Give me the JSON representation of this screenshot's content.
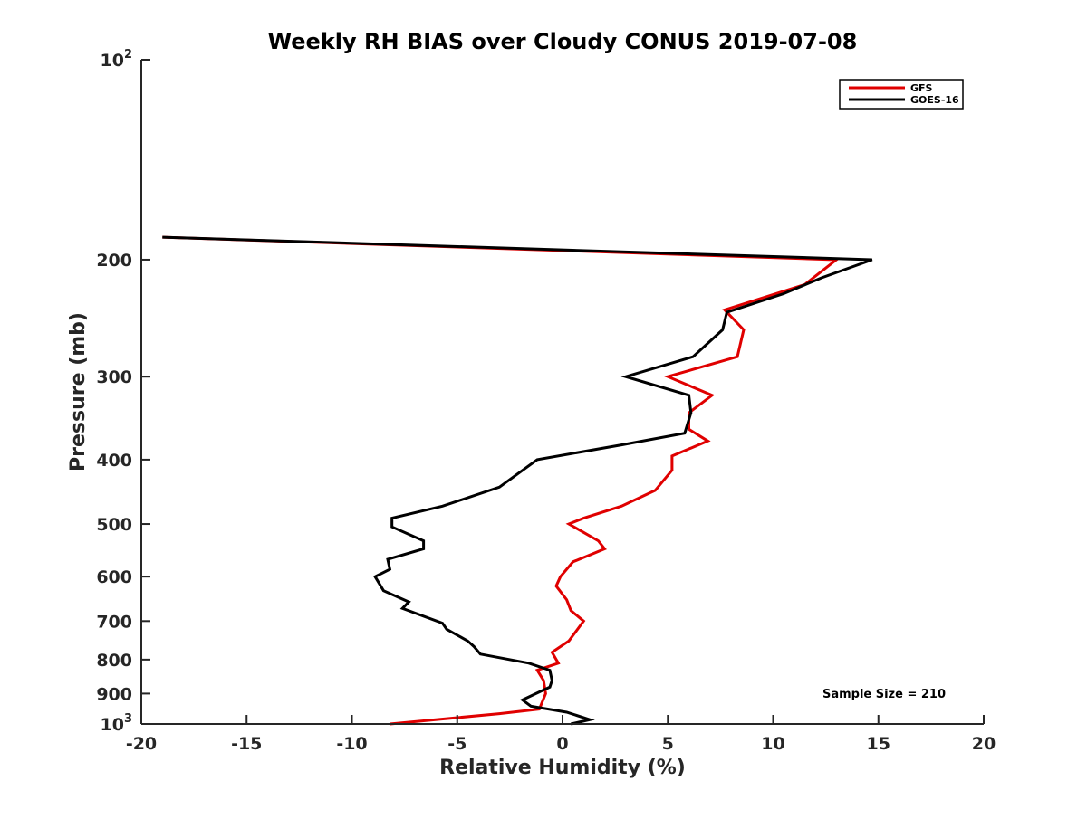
{
  "chart_data": {
    "type": "line",
    "title": "Weekly RH BIAS over Cloudy CONUS 2019-07-08",
    "xlabel": "Relative Humidity (%)",
    "ylabel": "Pressure (mb)",
    "xlim": [
      -20,
      20
    ],
    "ylim": [
      100,
      1000
    ],
    "yscale": "log",
    "y_reversed": true,
    "grid": false,
    "legend_position": "top-right",
    "x_ticks": [
      "-20",
      "-15",
      "-10",
      "-5",
      "0",
      "5",
      "10",
      "15",
      "20"
    ],
    "y_ticks": [
      {
        "value": 100,
        "base": "10",
        "exp": "2"
      },
      {
        "value": 200,
        "base": "200",
        "exp": ""
      },
      {
        "value": 300,
        "base": "300",
        "exp": ""
      },
      {
        "value": 400,
        "base": "400",
        "exp": ""
      },
      {
        "value": 500,
        "base": "500",
        "exp": ""
      },
      {
        "value": 600,
        "base": "600",
        "exp": ""
      },
      {
        "value": 700,
        "base": "700",
        "exp": ""
      },
      {
        "value": 800,
        "base": "800",
        "exp": ""
      },
      {
        "value": 900,
        "base": "900",
        "exp": ""
      },
      {
        "value": 1000,
        "base": "10",
        "exp": "3"
      }
    ],
    "annotation": "Sample Size = 210",
    "series": [
      {
        "name": "GFS",
        "color": "#e00000",
        "points": [
          [
            -19,
            185
          ],
          [
            13,
            200
          ],
          [
            11.5,
            218
          ],
          [
            7.7,
            238
          ],
          [
            8.6,
            255
          ],
          [
            8.3,
            280
          ],
          [
            5,
            300
          ],
          [
            7.1,
            320
          ],
          [
            6,
            340
          ],
          [
            6,
            360
          ],
          [
            6.9,
            375
          ],
          [
            5.2,
            395
          ],
          [
            5.2,
            415
          ],
          [
            4.4,
            445
          ],
          [
            2.8,
            470
          ],
          [
            1,
            490
          ],
          [
            0.3,
            500
          ],
          [
            1.7,
            530
          ],
          [
            2,
            545
          ],
          [
            0.5,
            570
          ],
          [
            -0.1,
            600
          ],
          [
            -0.3,
            620
          ],
          [
            0.2,
            650
          ],
          [
            0.4,
            675
          ],
          [
            1,
            700
          ],
          [
            0.3,
            750
          ],
          [
            -0.5,
            780
          ],
          [
            -0.2,
            810
          ],
          [
            -1.2,
            830
          ],
          [
            -0.9,
            860
          ],
          [
            -0.8,
            900
          ],
          [
            -1.1,
            950
          ],
          [
            -3,
            965
          ],
          [
            -8.2,
            1000
          ]
        ]
      },
      {
        "name": "GOES-16",
        "color": "#000000",
        "points": [
          [
            -19,
            185
          ],
          [
            14.7,
            200
          ],
          [
            12.3,
            213
          ],
          [
            10.5,
            225
          ],
          [
            7.8,
            240
          ],
          [
            7.6,
            255
          ],
          [
            6.2,
            280
          ],
          [
            3,
            300
          ],
          [
            6,
            320
          ],
          [
            6.1,
            340
          ],
          [
            5.8,
            365
          ],
          [
            2.8,
            380
          ],
          [
            -1.2,
            400
          ],
          [
            -3,
            440
          ],
          [
            -5.7,
            470
          ],
          [
            -8.1,
            490
          ],
          [
            -8.1,
            505
          ],
          [
            -6.6,
            530
          ],
          [
            -6.6,
            545
          ],
          [
            -8.3,
            565
          ],
          [
            -8.2,
            585
          ],
          [
            -8.9,
            600
          ],
          [
            -8.5,
            630
          ],
          [
            -7.3,
            655
          ],
          [
            -7.6,
            670
          ],
          [
            -5.7,
            705
          ],
          [
            -5.5,
            720
          ],
          [
            -4.5,
            750
          ],
          [
            -4.2,
            765
          ],
          [
            -3.9,
            785
          ],
          [
            -1.6,
            810
          ],
          [
            -0.6,
            830
          ],
          [
            -0.5,
            860
          ],
          [
            -0.6,
            880
          ],
          [
            -1.1,
            895
          ],
          [
            -1.9,
            920
          ],
          [
            -1.5,
            940
          ],
          [
            0.2,
            960
          ],
          [
            1.3,
            985
          ],
          [
            0.4,
            1000
          ]
        ]
      }
    ]
  }
}
